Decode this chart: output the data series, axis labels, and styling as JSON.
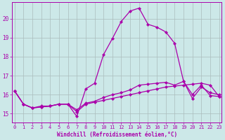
{
  "xlabel": "Windchill (Refroidissement éolien,°C)",
  "bg_color": "#cce8e8",
  "line_color": "#aa00aa",
  "grid_color": "#aabcbc",
  "x_ticks": [
    0,
    1,
    2,
    3,
    4,
    5,
    6,
    7,
    8,
    9,
    10,
    11,
    12,
    13,
    14,
    15,
    16,
    17,
    18,
    19,
    20,
    21,
    22,
    23
  ],
  "y_ticks": [
    15,
    16,
    17,
    18,
    19,
    20
  ],
  "xlim": [
    -0.3,
    23.3
  ],
  "ylim": [
    14.55,
    20.85
  ],
  "series": [
    {
      "x": [
        0,
        1,
        2,
        3,
        4,
        5,
        6,
        7,
        8,
        9,
        10,
        11,
        12,
        13,
        14,
        15,
        16,
        17,
        18,
        19,
        20,
        21,
        22,
        23
      ],
      "y": [
        16.2,
        15.5,
        15.3,
        15.4,
        15.4,
        15.5,
        15.5,
        15.1,
        15.5,
        15.6,
        15.7,
        15.8,
        15.9,
        16.0,
        16.1,
        16.2,
        16.3,
        16.4,
        16.45,
        16.5,
        16.55,
        16.6,
        16.5,
        15.9
      ],
      "style": "line_markers"
    },
    {
      "x": [
        0,
        1,
        2,
        3,
        4,
        5,
        6,
        7,
        8,
        9,
        10,
        11,
        12,
        13,
        14,
        15,
        16,
        17,
        18,
        19,
        20,
        21,
        22,
        23
      ],
      "y": [
        16.2,
        15.5,
        15.3,
        15.35,
        15.4,
        15.5,
        15.5,
        15.2,
        15.55,
        15.65,
        15.85,
        16.0,
        16.1,
        16.25,
        16.5,
        16.55,
        16.6,
        16.65,
        16.5,
        16.7,
        15.8,
        16.4,
        16.1,
        16.0
      ],
      "style": "line_markers"
    },
    {
      "x": [
        0,
        1,
        2,
        3,
        4,
        5,
        6,
        7,
        8,
        9,
        10,
        11,
        12,
        13,
        14,
        15,
        16,
        17,
        18,
        19,
        20,
        21,
        22,
        23
      ],
      "y": [
        16.2,
        15.5,
        15.3,
        15.35,
        15.4,
        15.5,
        15.5,
        14.85,
        16.3,
        16.6,
        18.1,
        18.95,
        19.85,
        20.4,
        20.55,
        19.7,
        19.55,
        19.3,
        18.7,
        16.7,
        16.0,
        16.5,
        15.95,
        15.9
      ],
      "style": "line_markers"
    }
  ],
  "marker": "D",
  "markersize": 2.2,
  "linewidth": 0.9
}
